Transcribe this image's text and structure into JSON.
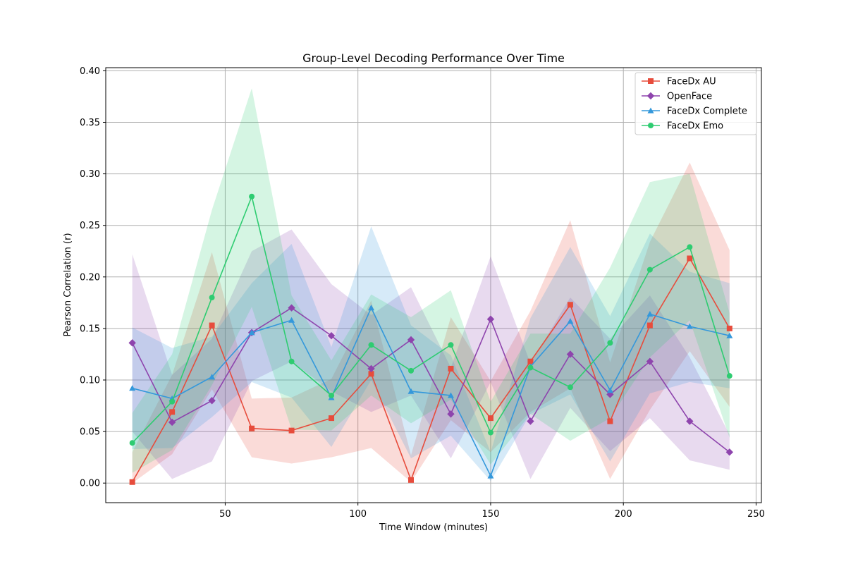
{
  "chart_data": {
    "type": "line",
    "title": "Group-Level Decoding Performance Over Time",
    "xlabel": "Time Window (minutes)",
    "ylabel": "Pearson Correlation (r)",
    "xlim": [
      5,
      252
    ],
    "ylim": [
      -0.019,
      0.403
    ],
    "xticks": [
      50,
      100,
      150,
      200,
      250
    ],
    "yticks": [
      0.0,
      0.05,
      0.1,
      0.15,
      0.2,
      0.25,
      0.3,
      0.35,
      0.4
    ],
    "ytick_labels": [
      "0.00",
      "0.05",
      "0.10",
      "0.15",
      "0.20",
      "0.25",
      "0.30",
      "0.35",
      "0.40"
    ],
    "grid": true,
    "legend_position": "top-right",
    "x": [
      15,
      30,
      45,
      60,
      75,
      90,
      105,
      120,
      135,
      150,
      165,
      180,
      195,
      210,
      225,
      240
    ],
    "series": [
      {
        "name": "FaceDx AU",
        "color": "#e74c3c",
        "marker": "square",
        "values": [
          0.001,
          0.069,
          0.153,
          0.053,
          0.051,
          0.063,
          0.106,
          0.003,
          0.111,
          0.063,
          0.118,
          0.173,
          0.06,
          0.153,
          0.218,
          0.15
        ],
        "lower": [
          0.0,
          0.028,
          0.091,
          0.025,
          0.019,
          0.025,
          0.034,
          0.001,
          0.061,
          0.03,
          0.069,
          0.092,
          0.004,
          0.071,
          0.128,
          0.074
        ],
        "upper": [
          0.03,
          0.105,
          0.224,
          0.082,
          0.083,
          0.101,
          0.177,
          0.027,
          0.161,
          0.099,
          0.167,
          0.255,
          0.117,
          0.234,
          0.311,
          0.226
        ]
      },
      {
        "name": "OpenFace",
        "color": "#8e44ad",
        "marker": "diamond",
        "values": [
          0.136,
          0.059,
          0.08,
          0.146,
          0.17,
          0.143,
          0.111,
          0.139,
          0.067,
          0.159,
          0.06,
          0.125,
          0.086,
          0.118,
          0.06,
          0.03
        ],
        "lower": [
          0.05,
          0.004,
          0.021,
          0.099,
          0.118,
          0.089,
          0.069,
          0.085,
          0.024,
          0.098,
          0.004,
          0.073,
          0.031,
          0.063,
          0.022,
          0.013
        ],
        "upper": [
          0.222,
          0.105,
          0.14,
          0.225,
          0.246,
          0.193,
          0.163,
          0.19,
          0.112,
          0.22,
          0.116,
          0.18,
          0.14,
          0.182,
          0.122,
          0.047
        ]
      },
      {
        "name": "FaceDx Complete",
        "color": "#3498db",
        "marker": "triangle",
        "values": [
          0.092,
          0.082,
          0.103,
          0.146,
          0.158,
          0.083,
          0.17,
          0.089,
          0.085,
          0.007,
          0.113,
          0.157,
          0.09,
          0.164,
          0.152,
          0.143
        ],
        "lower": [
          0.033,
          0.034,
          0.064,
          0.098,
          0.083,
          0.035,
          0.1,
          0.024,
          0.046,
          0.002,
          0.067,
          0.086,
          0.021,
          0.087,
          0.098,
          0.092
        ],
        "upper": [
          0.151,
          0.131,
          0.142,
          0.194,
          0.232,
          0.132,
          0.249,
          0.153,
          0.124,
          0.03,
          0.16,
          0.229,
          0.162,
          0.242,
          0.205,
          0.194
        ]
      },
      {
        "name": "FaceDx Emo",
        "color": "#2ecc71",
        "marker": "circle",
        "values": [
          0.039,
          0.079,
          0.18,
          0.278,
          0.118,
          0.085,
          0.134,
          0.109,
          0.134,
          0.049,
          0.112,
          0.093,
          0.136,
          0.207,
          0.229,
          0.104
        ],
        "lower": [
          0.01,
          0.032,
          0.095,
          0.171,
          0.052,
          0.051,
          0.085,
          0.058,
          0.081,
          0.018,
          0.067,
          0.041,
          0.063,
          0.122,
          0.158,
          0.044
        ],
        "upper": [
          0.068,
          0.125,
          0.265,
          0.383,
          0.182,
          0.119,
          0.183,
          0.161,
          0.187,
          0.079,
          0.145,
          0.145,
          0.209,
          0.292,
          0.3,
          0.165
        ]
      }
    ]
  }
}
